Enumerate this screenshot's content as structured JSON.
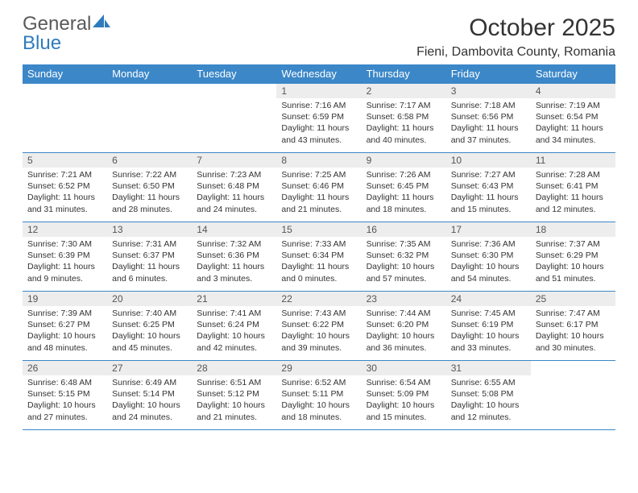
{
  "logo": {
    "text1": "General",
    "text2": "Blue"
  },
  "title": "October 2025",
  "location": "Fieni, Dambovita County, Romania",
  "day_headers": [
    "Sunday",
    "Monday",
    "Tuesday",
    "Wednesday",
    "Thursday",
    "Friday",
    "Saturday"
  ],
  "colors": {
    "header_bg": "#3b87c8",
    "header_fg": "#ffffff",
    "daynum_bg": "#ededed",
    "border": "#3b87c8",
    "logo_gray": "#5a5a5a",
    "logo_blue": "#2f7bbd"
  },
  "weeks": [
    [
      null,
      null,
      null,
      {
        "n": "1",
        "rise": "7:16 AM",
        "set": "6:59 PM",
        "dl": "11 hours and 43 minutes."
      },
      {
        "n": "2",
        "rise": "7:17 AM",
        "set": "6:58 PM",
        "dl": "11 hours and 40 minutes."
      },
      {
        "n": "3",
        "rise": "7:18 AM",
        "set": "6:56 PM",
        "dl": "11 hours and 37 minutes."
      },
      {
        "n": "4",
        "rise": "7:19 AM",
        "set": "6:54 PM",
        "dl": "11 hours and 34 minutes."
      }
    ],
    [
      {
        "n": "5",
        "rise": "7:21 AM",
        "set": "6:52 PM",
        "dl": "11 hours and 31 minutes."
      },
      {
        "n": "6",
        "rise": "7:22 AM",
        "set": "6:50 PM",
        "dl": "11 hours and 28 minutes."
      },
      {
        "n": "7",
        "rise": "7:23 AM",
        "set": "6:48 PM",
        "dl": "11 hours and 24 minutes."
      },
      {
        "n": "8",
        "rise": "7:25 AM",
        "set": "6:46 PM",
        "dl": "11 hours and 21 minutes."
      },
      {
        "n": "9",
        "rise": "7:26 AM",
        "set": "6:45 PM",
        "dl": "11 hours and 18 minutes."
      },
      {
        "n": "10",
        "rise": "7:27 AM",
        "set": "6:43 PM",
        "dl": "11 hours and 15 minutes."
      },
      {
        "n": "11",
        "rise": "7:28 AM",
        "set": "6:41 PM",
        "dl": "11 hours and 12 minutes."
      }
    ],
    [
      {
        "n": "12",
        "rise": "7:30 AM",
        "set": "6:39 PM",
        "dl": "11 hours and 9 minutes."
      },
      {
        "n": "13",
        "rise": "7:31 AM",
        "set": "6:37 PM",
        "dl": "11 hours and 6 minutes."
      },
      {
        "n": "14",
        "rise": "7:32 AM",
        "set": "6:36 PM",
        "dl": "11 hours and 3 minutes."
      },
      {
        "n": "15",
        "rise": "7:33 AM",
        "set": "6:34 PM",
        "dl": "11 hours and 0 minutes."
      },
      {
        "n": "16",
        "rise": "7:35 AM",
        "set": "6:32 PM",
        "dl": "10 hours and 57 minutes."
      },
      {
        "n": "17",
        "rise": "7:36 AM",
        "set": "6:30 PM",
        "dl": "10 hours and 54 minutes."
      },
      {
        "n": "18",
        "rise": "7:37 AM",
        "set": "6:29 PM",
        "dl": "10 hours and 51 minutes."
      }
    ],
    [
      {
        "n": "19",
        "rise": "7:39 AM",
        "set": "6:27 PM",
        "dl": "10 hours and 48 minutes."
      },
      {
        "n": "20",
        "rise": "7:40 AM",
        "set": "6:25 PM",
        "dl": "10 hours and 45 minutes."
      },
      {
        "n": "21",
        "rise": "7:41 AM",
        "set": "6:24 PM",
        "dl": "10 hours and 42 minutes."
      },
      {
        "n": "22",
        "rise": "7:43 AM",
        "set": "6:22 PM",
        "dl": "10 hours and 39 minutes."
      },
      {
        "n": "23",
        "rise": "7:44 AM",
        "set": "6:20 PM",
        "dl": "10 hours and 36 minutes."
      },
      {
        "n": "24",
        "rise": "7:45 AM",
        "set": "6:19 PM",
        "dl": "10 hours and 33 minutes."
      },
      {
        "n": "25",
        "rise": "7:47 AM",
        "set": "6:17 PM",
        "dl": "10 hours and 30 minutes."
      }
    ],
    [
      {
        "n": "26",
        "rise": "6:48 AM",
        "set": "5:15 PM",
        "dl": "10 hours and 27 minutes."
      },
      {
        "n": "27",
        "rise": "6:49 AM",
        "set": "5:14 PM",
        "dl": "10 hours and 24 minutes."
      },
      {
        "n": "28",
        "rise": "6:51 AM",
        "set": "5:12 PM",
        "dl": "10 hours and 21 minutes."
      },
      {
        "n": "29",
        "rise": "6:52 AM",
        "set": "5:11 PM",
        "dl": "10 hours and 18 minutes."
      },
      {
        "n": "30",
        "rise": "6:54 AM",
        "set": "5:09 PM",
        "dl": "10 hours and 15 minutes."
      },
      {
        "n": "31",
        "rise": "6:55 AM",
        "set": "5:08 PM",
        "dl": "10 hours and 12 minutes."
      },
      null
    ]
  ],
  "labels": {
    "sunrise": "Sunrise:",
    "sunset": "Sunset:",
    "daylight": "Daylight:"
  }
}
